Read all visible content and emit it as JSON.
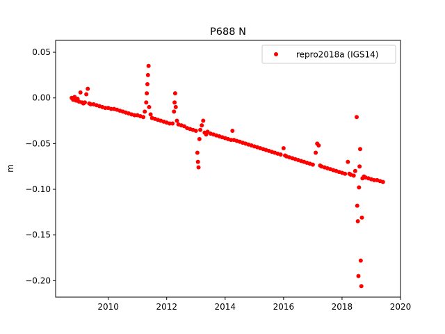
{
  "chart_data": {
    "type": "scatter",
    "title": "P688 N",
    "xlabel": "",
    "ylabel": "m",
    "xlim": [
      2008.2,
      2020.0
    ],
    "ylim": [
      -0.218,
      0.063
    ],
    "x_ticks": [
      2010,
      2012,
      2014,
      2016,
      2018,
      2020
    ],
    "x_tick_labels": [
      "2010",
      "2012",
      "2014",
      "2016",
      "2018",
      "2020"
    ],
    "y_ticks": [
      0.05,
      0.0,
      -0.05,
      -0.1,
      -0.15,
      -0.2
    ],
    "y_tick_labels": [
      "0.05",
      "0.00",
      "−0.05",
      "−0.10",
      "−0.15",
      "−0.20"
    ],
    "grid": false,
    "legend_position": "upper-right",
    "series": [
      {
        "name": "repro2018a (IGS14)",
        "color": "#ff0000",
        "marker": "circle",
        "points": [
          [
            2008.75,
            0.0
          ],
          [
            2008.8,
            -0.002
          ],
          [
            2008.85,
            0.001
          ],
          [
            2008.9,
            -0.003
          ],
          [
            2008.95,
            -0.001
          ],
          [
            2009.0,
            -0.004
          ],
          [
            2009.05,
            0.006
          ],
          [
            2009.1,
            -0.005
          ],
          [
            2009.15,
            -0.006
          ],
          [
            2009.2,
            -0.005
          ],
          [
            2009.25,
            0.004
          ],
          [
            2009.3,
            0.01
          ],
          [
            2009.35,
            -0.006
          ],
          [
            2009.4,
            -0.007
          ],
          [
            2009.5,
            -0.007
          ],
          [
            2009.6,
            -0.008
          ],
          [
            2009.7,
            -0.009
          ],
          [
            2009.8,
            -0.01
          ],
          [
            2009.9,
            -0.011
          ],
          [
            2010.0,
            -0.011
          ],
          [
            2010.1,
            -0.012
          ],
          [
            2010.2,
            -0.012
          ],
          [
            2010.3,
            -0.013
          ],
          [
            2010.4,
            -0.014
          ],
          [
            2010.5,
            -0.015
          ],
          [
            2010.6,
            -0.016
          ],
          [
            2010.7,
            -0.017
          ],
          [
            2010.8,
            -0.018
          ],
          [
            2010.9,
            -0.019
          ],
          [
            2011.0,
            -0.019
          ],
          [
            2011.1,
            -0.02
          ],
          [
            2011.2,
            -0.021
          ],
          [
            2011.25,
            -0.015
          ],
          [
            2011.3,
            -0.005
          ],
          [
            2011.32,
            0.005
          ],
          [
            2011.34,
            0.015
          ],
          [
            2011.36,
            0.025
          ],
          [
            2011.38,
            0.035
          ],
          [
            2011.4,
            -0.01
          ],
          [
            2011.45,
            -0.018
          ],
          [
            2011.5,
            -0.022
          ],
          [
            2011.6,
            -0.023
          ],
          [
            2011.7,
            -0.024
          ],
          [
            2011.8,
            -0.025
          ],
          [
            2011.9,
            -0.026
          ],
          [
            2012.0,
            -0.027
          ],
          [
            2012.1,
            -0.028
          ],
          [
            2012.2,
            -0.028
          ],
          [
            2012.25,
            -0.015
          ],
          [
            2012.27,
            -0.005
          ],
          [
            2012.29,
            0.005
          ],
          [
            2012.31,
            -0.01
          ],
          [
            2012.35,
            -0.025
          ],
          [
            2012.4,
            -0.029
          ],
          [
            2012.5,
            -0.03
          ],
          [
            2012.6,
            -0.031
          ],
          [
            2012.7,
            -0.033
          ],
          [
            2012.8,
            -0.034
          ],
          [
            2012.9,
            -0.035
          ],
          [
            2013.0,
            -0.036
          ],
          [
            2013.05,
            -0.06
          ],
          [
            2013.07,
            -0.07
          ],
          [
            2013.09,
            -0.076
          ],
          [
            2013.12,
            -0.045
          ],
          [
            2013.15,
            -0.035
          ],
          [
            2013.2,
            -0.03
          ],
          [
            2013.25,
            -0.025
          ],
          [
            2013.3,
            -0.038
          ],
          [
            2013.35,
            -0.04
          ],
          [
            2013.4,
            -0.037
          ],
          [
            2013.5,
            -0.039
          ],
          [
            2013.6,
            -0.04
          ],
          [
            2013.7,
            -0.041
          ],
          [
            2013.8,
            -0.042
          ],
          [
            2013.9,
            -0.043
          ],
          [
            2014.0,
            -0.044
          ],
          [
            2014.1,
            -0.045
          ],
          [
            2014.2,
            -0.046
          ],
          [
            2014.25,
            -0.036
          ],
          [
            2014.3,
            -0.046
          ],
          [
            2014.4,
            -0.047
          ],
          [
            2014.5,
            -0.048
          ],
          [
            2014.6,
            -0.049
          ],
          [
            2014.7,
            -0.05
          ],
          [
            2014.8,
            -0.051
          ],
          [
            2014.9,
            -0.052
          ],
          [
            2015.0,
            -0.053
          ],
          [
            2015.1,
            -0.054
          ],
          [
            2015.2,
            -0.055
          ],
          [
            2015.3,
            -0.056
          ],
          [
            2015.4,
            -0.057
          ],
          [
            2015.5,
            -0.058
          ],
          [
            2015.6,
            -0.059
          ],
          [
            2015.7,
            -0.06
          ],
          [
            2015.8,
            -0.061
          ],
          [
            2015.9,
            -0.062
          ],
          [
            2016.0,
            -0.055
          ],
          [
            2016.05,
            -0.063
          ],
          [
            2016.1,
            -0.064
          ],
          [
            2016.2,
            -0.065
          ],
          [
            2016.3,
            -0.066
          ],
          [
            2016.4,
            -0.067
          ],
          [
            2016.5,
            -0.068
          ],
          [
            2016.6,
            -0.069
          ],
          [
            2016.7,
            -0.07
          ],
          [
            2016.8,
            -0.071
          ],
          [
            2016.9,
            -0.072
          ],
          [
            2017.0,
            -0.073
          ],
          [
            2017.1,
            -0.06
          ],
          [
            2017.15,
            -0.05
          ],
          [
            2017.2,
            -0.052
          ],
          [
            2017.25,
            -0.074
          ],
          [
            2017.3,
            -0.075
          ],
          [
            2017.4,
            -0.076
          ],
          [
            2017.5,
            -0.077
          ],
          [
            2017.6,
            -0.078
          ],
          [
            2017.7,
            -0.079
          ],
          [
            2017.8,
            -0.08
          ],
          [
            2017.9,
            -0.081
          ],
          [
            2018.0,
            -0.082
          ],
          [
            2018.1,
            -0.083
          ],
          [
            2018.2,
            -0.07
          ],
          [
            2018.25,
            -0.083
          ],
          [
            2018.3,
            -0.084
          ],
          [
            2018.4,
            -0.085
          ],
          [
            2018.45,
            -0.08
          ],
          [
            2018.5,
            -0.021
          ],
          [
            2018.52,
            -0.118
          ],
          [
            2018.54,
            -0.135
          ],
          [
            2018.56,
            -0.195
          ],
          [
            2018.58,
            -0.098
          ],
          [
            2018.6,
            -0.075
          ],
          [
            2018.62,
            -0.056
          ],
          [
            2018.64,
            -0.178
          ],
          [
            2018.66,
            -0.206
          ],
          [
            2018.68,
            -0.131
          ],
          [
            2018.7,
            -0.088
          ],
          [
            2018.75,
            -0.086
          ],
          [
            2018.8,
            -0.087
          ],
          [
            2018.9,
            -0.088
          ],
          [
            2019.0,
            -0.089
          ],
          [
            2019.1,
            -0.09
          ],
          [
            2019.2,
            -0.09
          ],
          [
            2019.3,
            -0.091
          ],
          [
            2019.4,
            -0.092
          ]
        ]
      }
    ]
  }
}
